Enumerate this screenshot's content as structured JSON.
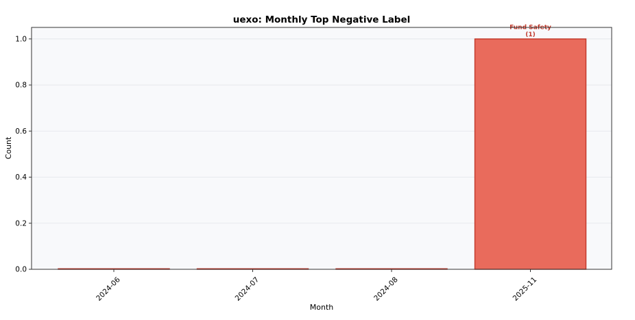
{
  "chart_data": {
    "type": "bar",
    "title": "uexo: Monthly Top Negative Label",
    "xlabel": "Month",
    "ylabel": "Count",
    "categories": [
      "2024-06",
      "2024-07",
      "2024-08",
      "2025-11"
    ],
    "values": [
      0,
      0,
      0,
      1
    ],
    "bar_labels": [
      "",
      "",
      "",
      "Fund Safety\n(1)"
    ],
    "yticks": [
      "0.0",
      "0.2",
      "0.4",
      "0.6",
      "0.8",
      "1.0"
    ],
    "ylim": [
      0,
      1.05
    ],
    "grid": "horizontal",
    "colors": {
      "bar_fill": "#e96b5c",
      "bar_edge": "#c0392b",
      "plot_bg": "#f8f9fb",
      "grid": "#e2e5ea",
      "label": "#c0392b"
    }
  }
}
